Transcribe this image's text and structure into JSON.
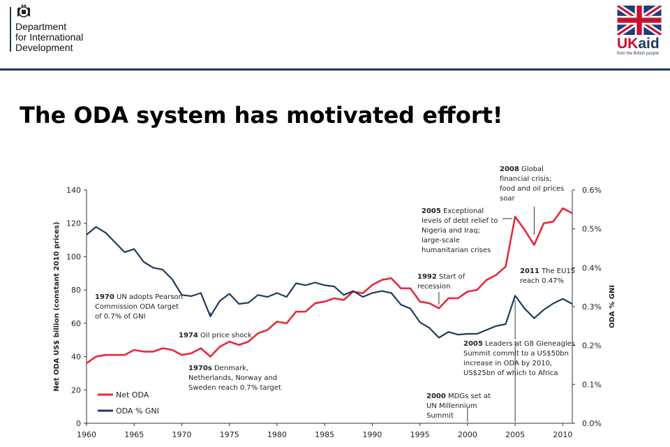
{
  "header": {
    "org_lines": [
      "Department",
      "for International",
      "Development"
    ],
    "brand_uk": "UK",
    "brand_aid": "aid",
    "brand_tagline": "from the British people"
  },
  "title": "The ODA system has motivated effort!",
  "colors": {
    "net_oda": "#e8283c",
    "oda_gni": "#1f3b5a",
    "axis": "#333333"
  },
  "chart_data": {
    "type": "line",
    "x_ticks": [
      1960,
      1965,
      1970,
      1975,
      1980,
      1985,
      1990,
      1995,
      2000,
      2005,
      2010
    ],
    "xlim": [
      1960,
      2011
    ],
    "left_axis": {
      "label": "Net ODA US$ billion (constant 2010 prices)",
      "ylim": [
        0,
        140
      ],
      "ticks": [
        "0",
        "20",
        "40",
        "60",
        "80",
        "100",
        "120",
        "140"
      ],
      "values": [
        0,
        20,
        40,
        60,
        80,
        100,
        120,
        140
      ]
    },
    "right_axis": {
      "label": "ODA % GNI",
      "ylim": [
        0,
        0.6
      ],
      "ticks": [
        "0.0%",
        "0.1%",
        "0.2%",
        "0.3%",
        "0.4%",
        "0.5%",
        "0.6%"
      ],
      "values": [
        0,
        0.1,
        0.2,
        0.3,
        0.4,
        0.5,
        0.6
      ]
    },
    "legend": [
      "Net ODA",
      "ODA % GNI"
    ],
    "series": [
      {
        "name": "Net ODA",
        "axis": "left",
        "x": [
          1960,
          1961,
          1962,
          1963,
          1964,
          1965,
          1966,
          1967,
          1968,
          1969,
          1970,
          1971,
          1972,
          1973,
          1974,
          1975,
          1976,
          1977,
          1978,
          1979,
          1980,
          1981,
          1982,
          1983,
          1984,
          1985,
          1986,
          1987,
          1988,
          1989,
          1990,
          1991,
          1992,
          1993,
          1994,
          1995,
          1996,
          1997,
          1998,
          1999,
          2000,
          2001,
          2002,
          2003,
          2004,
          2005,
          2006,
          2007,
          2008,
          2009,
          2010,
          2011
        ],
        "values": [
          36,
          40,
          41,
          41,
          41,
          44,
          43,
          43,
          45,
          44,
          41,
          42,
          45,
          40,
          46,
          49,
          47,
          49,
          54,
          56,
          61,
          60,
          67,
          67,
          72,
          73,
          75,
          74,
          79,
          78,
          83,
          86,
          87,
          81,
          81,
          73,
          72,
          69,
          75,
          75,
          79,
          80,
          86,
          89,
          94,
          124,
          116,
          107,
          120,
          121,
          129,
          126
        ]
      },
      {
        "name": "ODA % GNI",
        "axis": "right",
        "x": [
          1960,
          1961,
          1962,
          1963,
          1964,
          1965,
          1966,
          1967,
          1968,
          1969,
          1970,
          1971,
          1972,
          1973,
          1974,
          1975,
          1976,
          1977,
          1978,
          1979,
          1980,
          1981,
          1982,
          1983,
          1984,
          1985,
          1986,
          1987,
          1988,
          1989,
          1990,
          1991,
          1992,
          1993,
          1994,
          1995,
          1996,
          1997,
          1998,
          1999,
          2000,
          2001,
          2002,
          2003,
          2004,
          2005,
          2006,
          2007,
          2008,
          2009,
          2010,
          2011
        ],
        "values": [
          0.485,
          0.505,
          0.49,
          0.465,
          0.44,
          0.448,
          0.415,
          0.4,
          0.395,
          0.37,
          0.33,
          0.327,
          0.335,
          0.275,
          0.315,
          0.333,
          0.307,
          0.31,
          0.33,
          0.325,
          0.335,
          0.325,
          0.36,
          0.355,
          0.362,
          0.355,
          0.352,
          0.33,
          0.34,
          0.325,
          0.335,
          0.34,
          0.335,
          0.305,
          0.295,
          0.26,
          0.245,
          0.22,
          0.235,
          0.228,
          0.23,
          0.23,
          0.24,
          0.25,
          0.255,
          0.328,
          0.295,
          0.27,
          0.292,
          0.308,
          0.32,
          0.307
        ]
      }
    ],
    "annotations": [
      {
        "id": "1970",
        "bold": "1970",
        "lines": [
          "1970 UN adopts Pearson",
          "Commission ODA target",
          "of 0.7% of GNI"
        ]
      },
      {
        "id": "1974",
        "bold": "1974",
        "lines": [
          "1974 Oil price shock"
        ]
      },
      {
        "id": "1970s",
        "bold": "1970s",
        "lines": [
          "1970s  Denmark,",
          "Netherlands, Norway and",
          "Sweden reach 0.7% target"
        ]
      },
      {
        "id": "1992",
        "bold": "1992",
        "lines": [
          "1992 Start of",
          "recession"
        ]
      },
      {
        "id": "2000",
        "bold": "2000",
        "lines": [
          "2000 MDGs set at",
          "UN Millennium",
          "Summit"
        ]
      },
      {
        "id": "2005a",
        "bold": "2005",
        "lines": [
          "2005 Exceptional",
          "levels of debt relief to",
          "Nigeria and Iraq;",
          "large-scale",
          "humanitarian crises"
        ]
      },
      {
        "id": "2005b",
        "bold": "2005",
        "lines": [
          "2005 Leaders at G8 Gleneagles",
          "Summit commit to a US$50bn",
          "increase in ODA by 2010,",
          "US$25bn of which to Africa"
        ]
      },
      {
        "id": "2008",
        "bold": "2008",
        "lines": [
          "2008 Global",
          "financial crisis;",
          "food and oil prices",
          "soar"
        ]
      },
      {
        "id": "2011",
        "bold": "2011",
        "lines": [
          "2011 The EU15",
          "reach 0.47%"
        ]
      }
    ]
  }
}
